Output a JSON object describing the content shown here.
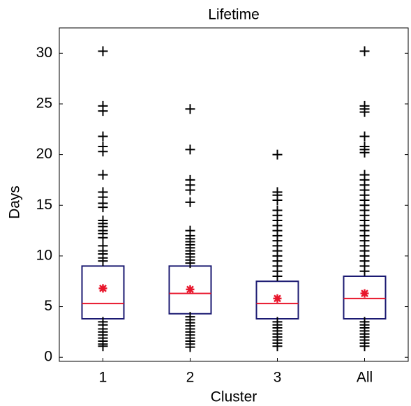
{
  "chart_data": {
    "type": "box",
    "title": "Lifetime",
    "x_label": "Cluster",
    "y_label": "Days",
    "categories": [
      "1",
      "2",
      "3",
      "All"
    ],
    "box_color": "#1b1a72",
    "median_color": "#e8152b",
    "mean_color": "#e8152b",
    "outlier_color": "#000000",
    "boxes": [
      {
        "q1": 3.8,
        "median": 5.3,
        "q3": 9.0,
        "mean": 6.8,
        "outliers": [
          30.2,
          24.8,
          24.3,
          21.8,
          20.8,
          20.3,
          18.0,
          16.3,
          15.8,
          15.2,
          14.8,
          13.5,
          13.2,
          12.9,
          12.5,
          12.2,
          11.8,
          11.0,
          10.5,
          10.2,
          9.8,
          9.5,
          3.5,
          3.2,
          2.8,
          2.5,
          2.2,
          1.9,
          1.6,
          1.3,
          1.1
        ]
      },
      {
        "q1": 4.3,
        "median": 6.3,
        "q3": 9.0,
        "mean": 6.7,
        "outliers": [
          24.5,
          20.5,
          17.5,
          17.0,
          16.5,
          15.3,
          12.5,
          12.0,
          11.7,
          11.4,
          11.1,
          10.8,
          10.5,
          10.2,
          9.9,
          9.6,
          9.3,
          4.0,
          3.7,
          3.4,
          3.1,
          2.8,
          2.5,
          2.2,
          1.9,
          1.6,
          1.3,
          1.0
        ]
      },
      {
        "q1": 3.8,
        "median": 5.3,
        "q3": 7.5,
        "mean": 5.8,
        "outliers": [
          20.0,
          16.3,
          16.0,
          15.5,
          14.5,
          14.0,
          13.5,
          13.0,
          12.5,
          12.0,
          11.5,
          11.0,
          10.5,
          10.0,
          9.5,
          9.0,
          8.5,
          8.0,
          3.5,
          3.2,
          2.9,
          2.6,
          2.3,
          2.0,
          1.7,
          1.4,
          1.1
        ]
      },
      {
        "q1": 3.8,
        "median": 5.8,
        "q3": 8.0,
        "mean": 6.3,
        "outliers": [
          30.2,
          24.8,
          24.5,
          24.2,
          21.8,
          20.8,
          20.5,
          20.2,
          18.0,
          17.5,
          17.0,
          16.5,
          16.0,
          15.5,
          15.0,
          14.5,
          14.0,
          13.5,
          13.0,
          12.5,
          12.0,
          11.5,
          11.0,
          10.5,
          10.0,
          9.5,
          9.0,
          8.5,
          3.5,
          3.2,
          2.9,
          2.6,
          2.3,
          2.0,
          1.7,
          1.4,
          1.1
        ]
      }
    ],
    "ylim": [
      -0.4,
      32.5
    ],
    "yticks": [
      0,
      5,
      10,
      15,
      20,
      25,
      30
    ]
  }
}
